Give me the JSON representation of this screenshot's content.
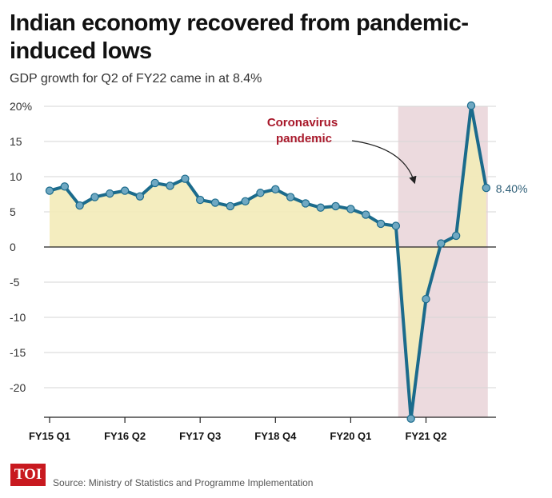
{
  "header": {
    "title": "Indian economy recovered from pandemic-induced lows",
    "subtitle": "GDP growth for Q2 of FY22 came in at 8.4%"
  },
  "footer": {
    "logo_text": "TOI",
    "source": "Source: Ministry of Statistics and Programme Implementation"
  },
  "colors": {
    "line": "#1b6b8c",
    "marker": "#6fa8c2",
    "area": "#f3ebb8",
    "shade": "#e9d3d8",
    "annotation": "#a8182a",
    "logo": "#c8191f"
  },
  "chart_data": {
    "type": "line",
    "title": "Indian economy recovered from pandemic-induced lows",
    "subtitle": "GDP growth for Q2 of FY22 came in at 8.4%",
    "x_tick_labels": [
      "FY15 Q1",
      "FY16 Q2",
      "FY17 Q3",
      "FY18 Q4",
      "FY20 Q1",
      "FY21 Q2"
    ],
    "x_tick_indices": [
      0,
      5,
      10,
      15,
      20,
      25
    ],
    "y_tick_labels": [
      "20%",
      "15",
      "10",
      "5",
      "0",
      "-5",
      "-10",
      "-15",
      "-20"
    ],
    "y_ticks": [
      20,
      15,
      10,
      5,
      0,
      -5,
      -10,
      -15,
      -20
    ],
    "ylim": [
      -24.4,
      20
    ],
    "quarters": [
      "FY15 Q1",
      "FY15 Q2",
      "FY15 Q3",
      "FY15 Q4",
      "FY16 Q1",
      "FY16 Q2",
      "FY16 Q3",
      "FY16 Q4",
      "FY17 Q1",
      "FY17 Q2",
      "FY17 Q3",
      "FY17 Q4",
      "FY18 Q1",
      "FY18 Q2",
      "FY18 Q3",
      "FY18 Q4",
      "FY19 Q1",
      "FY19 Q2",
      "FY19 Q3",
      "FY19 Q4",
      "FY20 Q1",
      "FY20 Q2",
      "FY20 Q3",
      "FY20 Q4",
      "FY21 Q1",
      "FY21 Q2",
      "FY21 Q3",
      "FY21 Q4",
      "FY22 Q1",
      "FY22 Q2"
    ],
    "values": [
      8.0,
      8.6,
      5.9,
      7.1,
      7.6,
      8.0,
      7.2,
      9.1,
      8.7,
      9.7,
      6.7,
      6.3,
      5.8,
      6.5,
      7.7,
      8.2,
      7.1,
      6.2,
      5.6,
      5.8,
      5.4,
      4.6,
      3.3,
      3.0,
      -24.4,
      -7.4,
      0.5,
      1.6,
      20.1,
      8.4
    ],
    "shaded_region": {
      "from": "FY21 Q1",
      "label_line1": "Coronavirus",
      "label_line2": "pandemic"
    },
    "end_label": "8.40%"
  }
}
